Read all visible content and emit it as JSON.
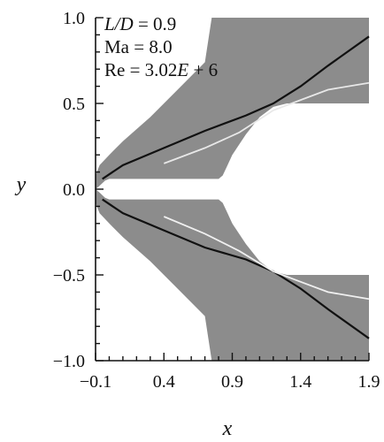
{
  "chart_data": {
    "type": "scatter",
    "xlabel": "x",
    "ylabel": "y",
    "xlim": [
      -0.1,
      1.9
    ],
    "ylim": [
      -1.0,
      1.0
    ],
    "x_ticks": [
      -0.1,
      0.4,
      0.9,
      1.4,
      1.9
    ],
    "x_tick_labels": [
      "−0.1",
      "0.4",
      "0.9",
      "1.4",
      "1.9"
    ],
    "y_ticks": [
      1.0,
      0.5,
      0.0,
      -0.5,
      -1.0
    ],
    "y_tick_labels": [
      "1.0",
      "0.5",
      "0.0",
      "−0.5",
      "−1.0"
    ],
    "annotations": [
      {
        "lhs": "L/D",
        "rhs": " = 0.9"
      },
      {
        "lhs": "Ma",
        "rhs": " = 8.0"
      },
      {
        "lhs": "Re",
        "rhs": " = 3.02",
        "emph": "E",
        "tail": " + 6"
      }
    ],
    "field_color": "#8c8c8c",
    "wall_color": "#ffffff",
    "upper_wall": {
      "x": [
        -0.1,
        -0.05,
        0.0,
        0.05,
        0.1,
        0.2,
        0.35,
        0.55,
        0.75,
        0.82,
        0.9,
        1.0,
        1.1,
        1.2,
        1.3,
        1.35,
        1.42,
        1.9
      ],
      "y": [
        0.1,
        0.13,
        0.16,
        0.18,
        0.22,
        0.28,
        0.35,
        0.42,
        0.48,
        0.49,
        0.5,
        0.5,
        0.5,
        0.5,
        0.5,
        0.5,
        0.5,
        0.5
      ]
    },
    "upper_body": {
      "x": [
        -0.1,
        -0.07,
        -0.03,
        0.0,
        0.1,
        0.4,
        0.7,
        0.8,
        0.83,
        0.86,
        0.9,
        1.0,
        1.1,
        1.2,
        1.3,
        1.4,
        1.9
      ],
      "y": [
        0.0,
        0.02,
        0.05,
        0.06,
        0.06,
        0.06,
        0.06,
        0.06,
        0.08,
        0.13,
        0.2,
        0.32,
        0.42,
        0.48,
        0.5,
        0.5,
        0.5
      ]
    },
    "upper_shock": {
      "x": [
        -0.05,
        0.1,
        0.4,
        0.7,
        1.0,
        1.2,
        1.4,
        1.6,
        1.9
      ],
      "y": [
        0.06,
        0.14,
        0.24,
        0.34,
        0.43,
        0.5,
        0.6,
        0.72,
        0.89
      ]
    },
    "upper_reflected": {
      "x": [
        0.4,
        0.7,
        0.95,
        1.2,
        1.4,
        1.6,
        1.9
      ],
      "y": [
        0.15,
        0.24,
        0.33,
        0.46,
        0.52,
        0.58,
        0.62
      ]
    },
    "lower_shock": {
      "x": [
        -0.05,
        0.1,
        0.4,
        0.7,
        1.0,
        1.2,
        1.4,
        1.6,
        1.9
      ],
      "y": [
        -0.06,
        -0.14,
        -0.24,
        -0.34,
        -0.41,
        -0.48,
        -0.58,
        -0.7,
        -0.87
      ]
    },
    "lower_reflected": {
      "x": [
        0.4,
        0.7,
        0.95,
        1.2,
        1.4,
        1.6,
        1.9
      ],
      "y": [
        -0.16,
        -0.26,
        -0.36,
        -0.48,
        -0.54,
        -0.6,
        -0.64
      ]
    }
  }
}
